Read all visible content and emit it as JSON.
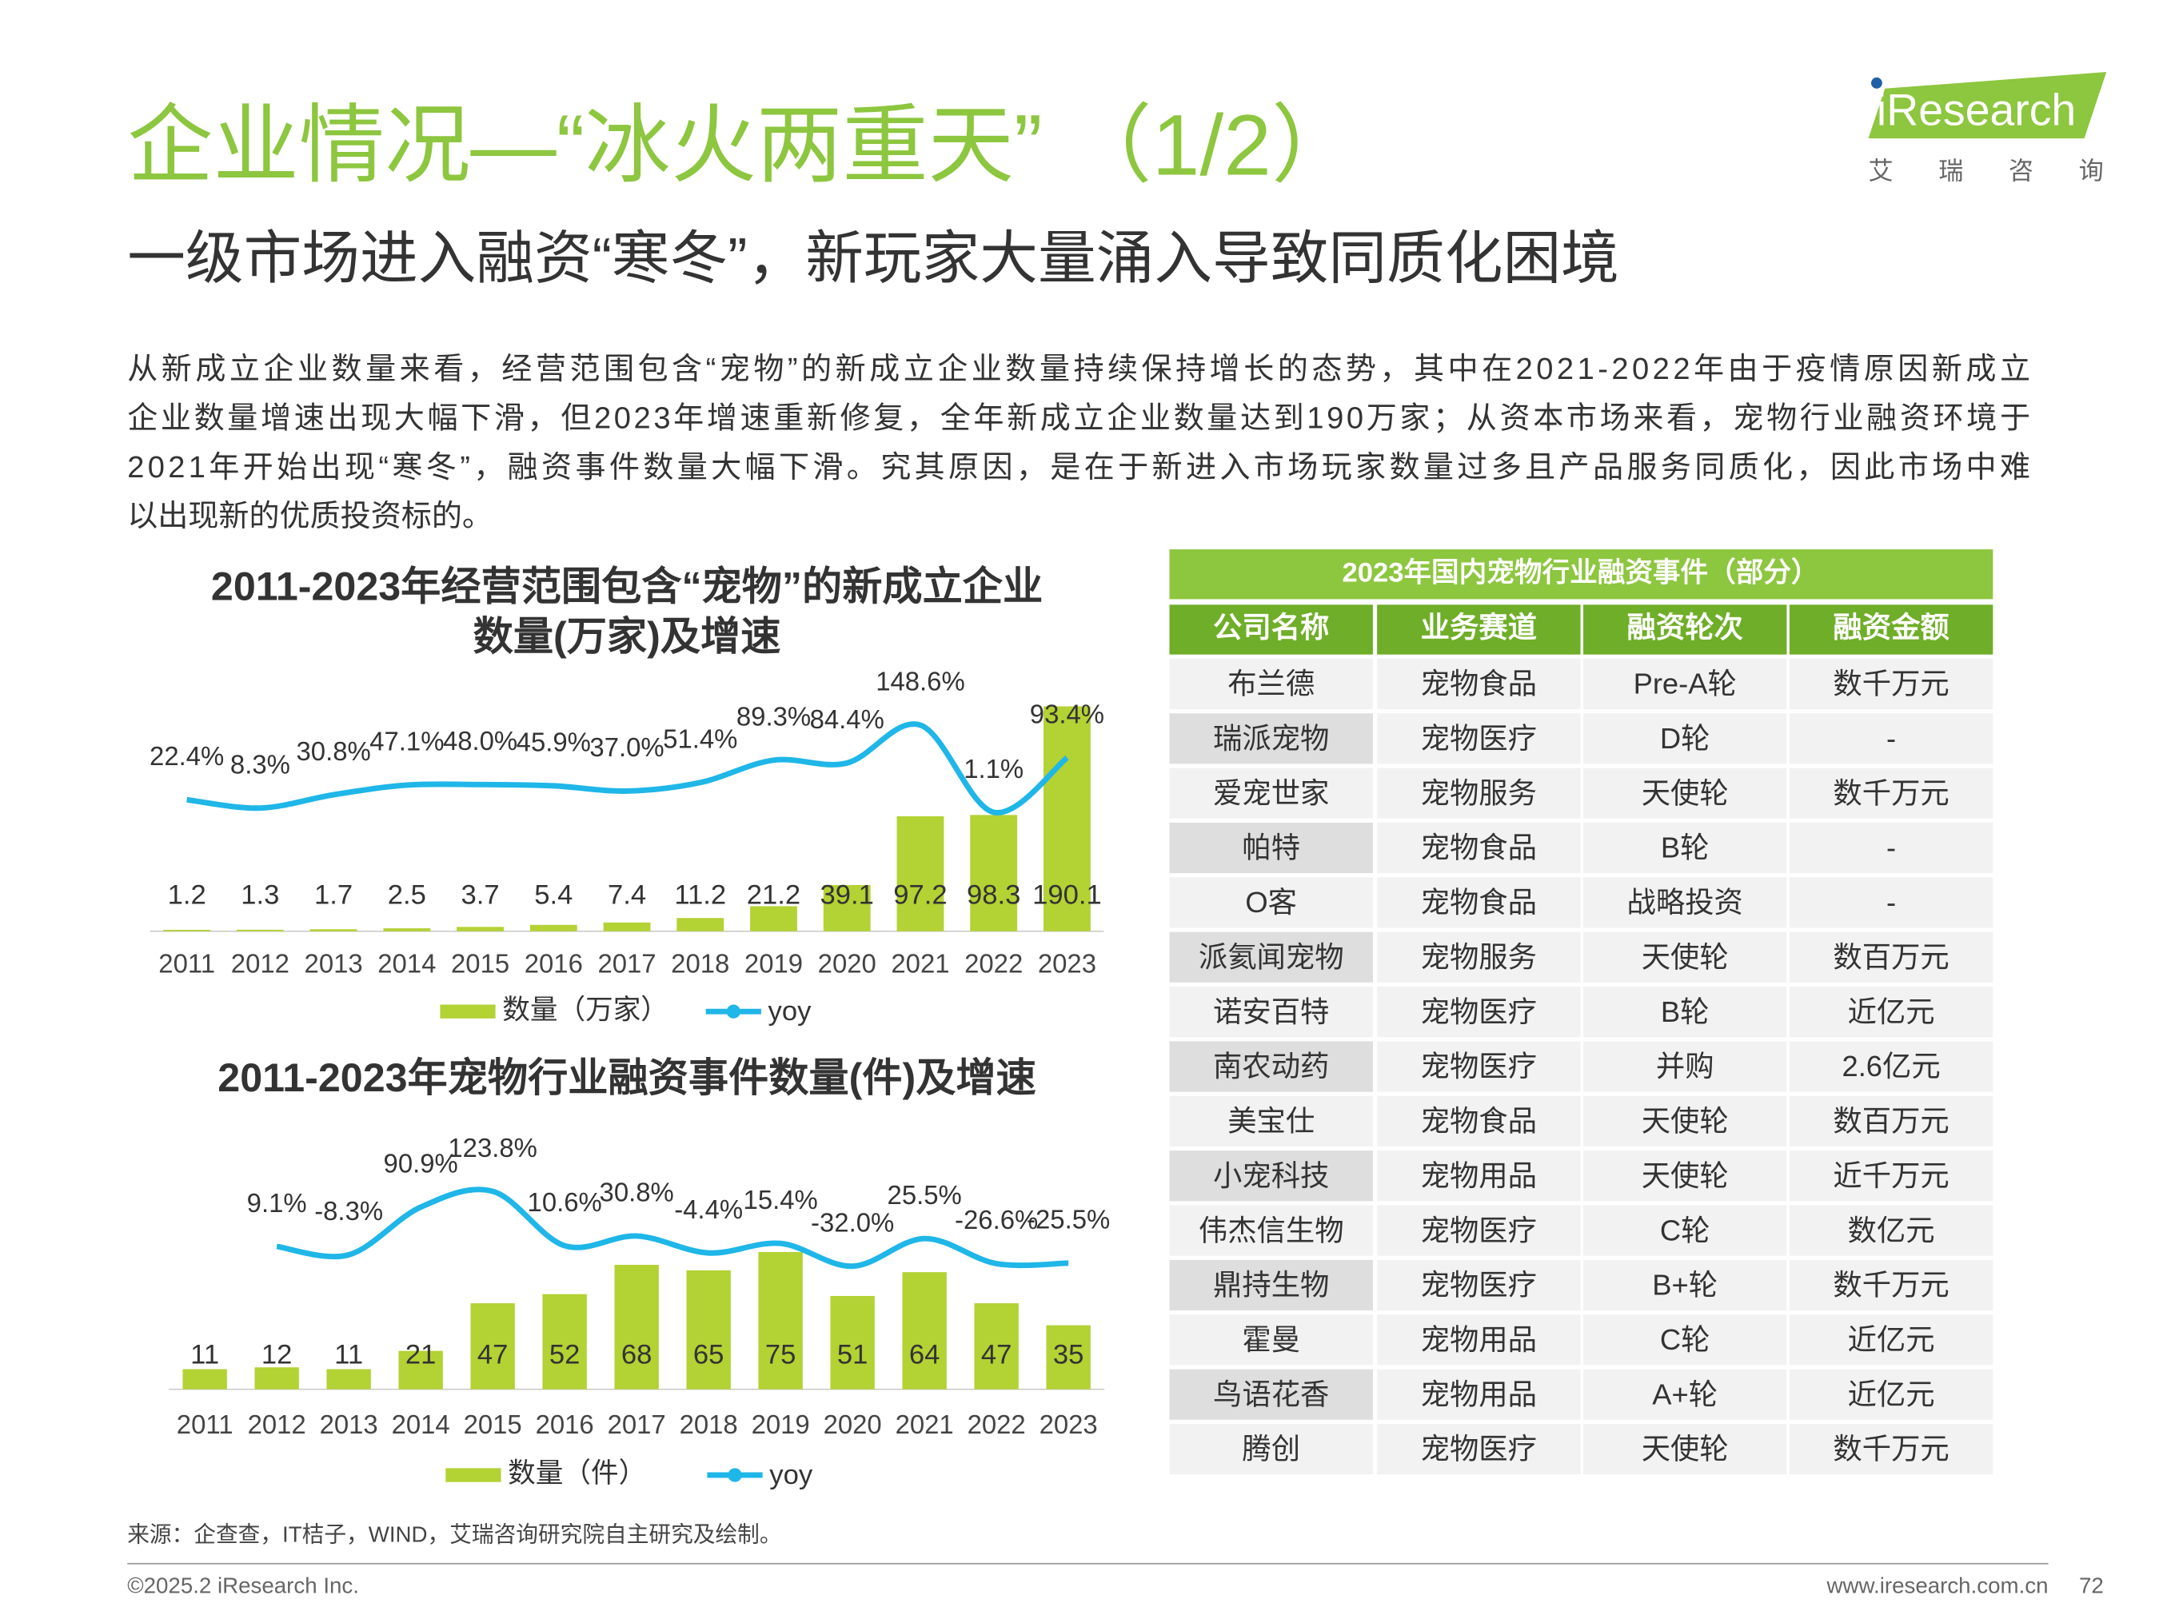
{
  "header": {
    "title": "企业情况—“冰火两重天” （1/2）",
    "subtitle": "一级市场进入融资“寒冬”，新玩家大量涌入导致同质化困境"
  },
  "logo": {
    "name": "iResearch",
    "subname": "艾 瑞 咨 询"
  },
  "body": [
    "从新成立企业数量来看，经营范围包含“宠物”的新成立企业数量持续保持增长的态势，其中在2021-2022年由于疫情原因新成立",
    "企业数量增速出现大幅下滑，但2023年增速重新修复，全年新成立企业数量达到190万家；从资本市场来看，宠物行业融资环境于",
    "2021年开始出现“寒冬”，融资事件数量大幅下滑。究其原因，是在于新进入市场玩家数量过多且产品服务同质化，因此市场中难",
    "以出现新的优质投资标的。"
  ],
  "chart_data": [
    {
      "type": "bar",
      "title": [
        "2011-2023年经营范围包含“宠物”的新成立企业",
        "数量(万家)及增速"
      ],
      "categories": [
        "2011",
        "2012",
        "2013",
        "2014",
        "2015",
        "2016",
        "2017",
        "2018",
        "2019",
        "2020",
        "2021",
        "2022",
        "2023"
      ],
      "series": [
        {
          "name": "数量（万家）",
          "type": "bar",
          "color": "#b3d234",
          "values": [
            1.2,
            1.3,
            1.7,
            2.5,
            3.7,
            5.4,
            7.4,
            11.2,
            21.2,
            39.1,
            97.2,
            98.3,
            190.1
          ]
        },
        {
          "name": "yoy",
          "type": "line",
          "axis": "y2",
          "color": "#1fb6e8",
          "values": [
            22.4,
            8.3,
            30.8,
            47.1,
            48.0,
            45.9,
            37.0,
            51.4,
            89.3,
            84.4,
            148.6,
            1.1,
            93.4
          ],
          "value_labels": [
            "22.4%",
            "8.3%",
            "30.8%",
            "47.1%",
            "48.0%",
            "45.9%",
            "37.0%",
            "51.4%",
            "89.3%",
            "84.4%",
            "148.6%",
            "1.1%",
            "93.4%"
          ]
        }
      ],
      "ylim": [
        0,
        200
      ],
      "y2lim": [
        -200,
        200
      ]
    },
    {
      "type": "bar",
      "title": [
        "2011-2023年宠物行业融资事件数量(件)及增速"
      ],
      "categories": [
        "2011",
        "2012",
        "2013",
        "2014",
        "2015",
        "2016",
        "2017",
        "2018",
        "2019",
        "2020",
        "2021",
        "2022",
        "2023"
      ],
      "series": [
        {
          "name": "数量（件）",
          "type": "bar",
          "color": "#b3d234",
          "values": [
            11,
            12,
            11,
            21,
            47,
            52,
            68,
            65,
            75,
            51,
            64,
            47,
            35
          ]
        },
        {
          "name": "yoy",
          "type": "line",
          "axis": "y2",
          "color": "#1fb6e8",
          "values": [
            null,
            9.1,
            -8.3,
            90.9,
            123.8,
            10.6,
            30.8,
            -4.4,
            15.4,
            -32.0,
            25.5,
            -26.6,
            -25.5
          ],
          "value_labels": [
            null,
            "9.1%",
            "-8.3%",
            "90.9%",
            "123.8%",
            "10.6%",
            "30.8%",
            "-4.4%",
            "15.4%",
            "-32.0%",
            "25.5%",
            "-26.6%",
            "-25.5%"
          ]
        }
      ],
      "ylim": [
        0,
        124
      ],
      "y2lim": [
        -288,
        184
      ]
    }
  ],
  "table": {
    "title": "2023年国内宠物行业融资事件（部分）",
    "columns": [
      "公司名称",
      "业务赛道",
      "融资轮次",
      "融资金额"
    ],
    "rows": [
      [
        "布兰德",
        "宠物食品",
        "Pre-A轮",
        "数千万元"
      ],
      [
        "瑞派宠物",
        "宠物医疗",
        "D轮",
        "-"
      ],
      [
        "爱宠世家",
        "宠物服务",
        "天使轮",
        "数千万元"
      ],
      [
        "帕特",
        "宠物食品",
        "B轮",
        "-"
      ],
      [
        "O客",
        "宠物食品",
        "战略投资",
        "-"
      ],
      [
        "派氦闻宠物",
        "宠物服务",
        "天使轮",
        "数百万元"
      ],
      [
        "诺安百特",
        "宠物医疗",
        "B轮",
        "近亿元"
      ],
      [
        "南农动药",
        "宠物医疗",
        "并购",
        "2.6亿元"
      ],
      [
        "美宝仕",
        "宠物食品",
        "天使轮",
        "数百万元"
      ],
      [
        "小宠科技",
        "宠物用品",
        "天使轮",
        "近千万元"
      ],
      [
        "伟杰信生物",
        "宠物医疗",
        "C轮",
        "数亿元"
      ],
      [
        "鼎持生物",
        "宠物医疗",
        "B+轮",
        "数千万元"
      ],
      [
        "霍曼",
        "宠物用品",
        "C轮",
        "近亿元"
      ],
      [
        "鸟语花香",
        "宠物用品",
        "A+轮",
        "近亿元"
      ],
      [
        "腾创",
        "宠物医疗",
        "天使轮",
        "数千万元"
      ]
    ]
  },
  "source": "来源：企查查，IT桔子，WIND，艾瑞咨询研究院自主研究及绘制。",
  "footer": {
    "copyright": "©2025.2 iResearch Inc.",
    "url": "www.iresearch.com.cn",
    "page": "72"
  }
}
